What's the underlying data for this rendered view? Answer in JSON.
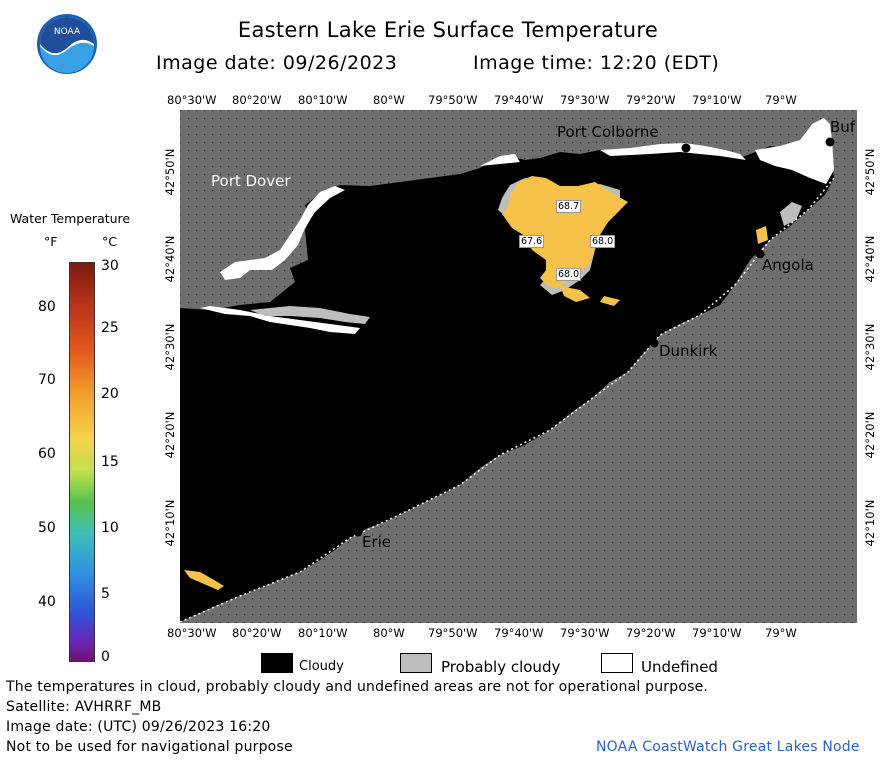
{
  "header": {
    "title": "Eastern Lake Erie Surface Temperature",
    "image_date_label": "Image date: 09/26/2023",
    "image_time_label": "Image time: 12:20 (EDT)"
  },
  "logo": {
    "text": "NOAA"
  },
  "legend": {
    "title": "Water Temperature",
    "unit_f": "°F",
    "unit_c": "°C",
    "f_ticks": [
      "80",
      "70",
      "60",
      "50",
      "40"
    ],
    "c_ticks": [
      "30",
      "25",
      "20",
      "15",
      "10",
      "5",
      "0"
    ]
  },
  "axes": {
    "lon_labels": [
      "80°30'W",
      "80°20'W",
      "80°10'W",
      "80°W",
      "79°50'W",
      "79°40'W",
      "79°30'W",
      "79°20'W",
      "79°10'W",
      "79°W"
    ],
    "lat_labels": [
      "42°50'N",
      "42°40'N",
      "42°30'N",
      "42°20'N",
      "42°10'N"
    ]
  },
  "places": {
    "port_colborne": "Port Colborne",
    "port_dover": "Port Dover",
    "angola": "Angola",
    "dunkirk": "Dunkirk",
    "erie": "Erie",
    "buffalo": "Buf"
  },
  "temps": [
    "68.7",
    "67.6",
    "68.0",
    "68.0"
  ],
  "key": {
    "cloudy": "Cloudy",
    "probably_cloudy": "Probably cloudy",
    "undefined": "Undefined"
  },
  "colors": {
    "land": "#6e6e6e",
    "cloud": "#000000",
    "prob_cloud": "#bdbdbd",
    "undefined": "#ffffff",
    "warm_water": "#f7c24a"
  },
  "footer": {
    "disclaimer": "The temperatures in cloud, probably cloudy and undefined areas are not for operational purpose.",
    "satellite": "Satellite: AVHRRF_MB",
    "utc_date": "Image date: (UTC) 09/26/2023  16:20",
    "nav_warning": "Not to be used for navigational purpose",
    "node": "NOAA CoastWatch Great Lakes Node"
  }
}
